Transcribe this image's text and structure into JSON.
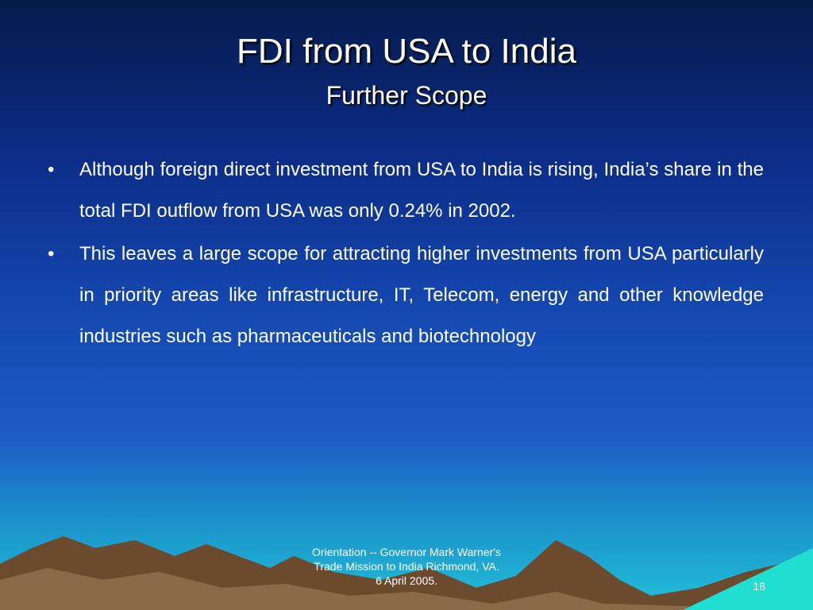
{
  "header": {
    "title": "FDI from USA to India",
    "subtitle": "Further Scope"
  },
  "bullets": [
    "Although foreign direct investment from USA to India is rising, India’s share in the total FDI outflow from USA was only 0.24% in 2002.",
    "This leaves a large scope for attracting higher investments from USA particularly in priority areas like infrastructure, IT, Telecom, energy and other knowledge industries such as pharmaceuticals and biotechnology"
  ],
  "footer": {
    "lines": [
      "Orientation -- Governor Mark Warner's",
      "Trade Mission to India Richmond, VA.",
      "6 April 2005."
    ],
    "page": "18"
  }
}
